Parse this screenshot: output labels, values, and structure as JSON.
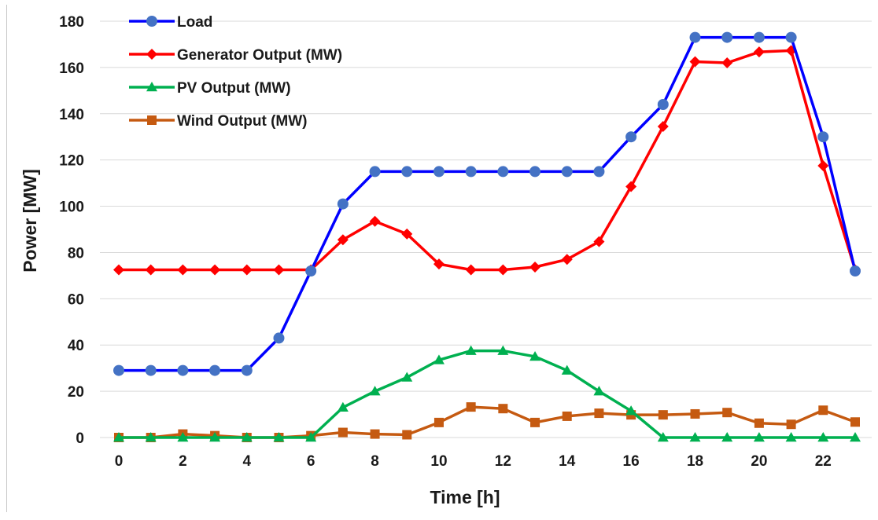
{
  "chart_data": {
    "type": "line",
    "xlabel": "Time [h]",
    "ylabel": "Power [MW]",
    "xlim": [
      0,
      23
    ],
    "ylim": [
      0,
      180
    ],
    "x_ticks": [
      "0",
      "2",
      "4",
      "6",
      "8",
      "10",
      "12",
      "14",
      "16",
      "18",
      "20",
      "22"
    ],
    "y_ticks": [
      "0",
      "20",
      "40",
      "60",
      "80",
      "100",
      "120",
      "140",
      "160",
      "180"
    ],
    "x": [
      0,
      1,
      2,
      3,
      4,
      5,
      6,
      7,
      8,
      9,
      10,
      11,
      12,
      13,
      14,
      15,
      16,
      17,
      18,
      19,
      20,
      21,
      22,
      23
    ],
    "grid": "horizontal",
    "legend_position": "top-left",
    "series": [
      {
        "name": "Load",
        "color": "#0000ff",
        "marker_color": "#4472c4",
        "marker": "circle",
        "values": [
          29,
          29,
          29,
          29,
          29,
          43,
          72,
          101,
          115,
          115,
          115,
          115,
          115,
          115,
          115,
          115,
          130,
          144,
          173,
          173,
          173,
          173,
          130,
          72
        ]
      },
      {
        "name": "Generator Output (MW)",
        "color": "#ff0000",
        "marker_color": "#ff0000",
        "marker": "diamond",
        "values": [
          72.5,
          72.5,
          72.5,
          72.5,
          72.5,
          72.5,
          72.5,
          85.5,
          93.5,
          88,
          75,
          72.5,
          72.5,
          73.7,
          77,
          84.7,
          108.5,
          134.5,
          162.5,
          162,
          166.7,
          167.3,
          117.5,
          72.5
        ]
      },
      {
        "name": "PV Output (MW)",
        "color": "#00b050",
        "marker_color": "#00b050",
        "marker": "triangle",
        "values": [
          0,
          0,
          0,
          0,
          0,
          0,
          0,
          13,
          20,
          26,
          33.5,
          37.5,
          37.5,
          35,
          29,
          20,
          11.5,
          0,
          0,
          0,
          0,
          0,
          0,
          0
        ]
      },
      {
        "name": "Wind Output (MW)",
        "color": "#c55a11",
        "marker_color": "#c55a11",
        "marker": "square",
        "values": [
          0,
          0,
          1.5,
          0.8,
          0,
          0,
          0.8,
          2.2,
          1.5,
          1.2,
          6.5,
          13.2,
          12.5,
          6.5,
          9.2,
          10.5,
          9.8,
          9.8,
          10.2,
          10.8,
          6.2,
          5.7,
          11.8,
          6.7
        ]
      }
    ]
  }
}
